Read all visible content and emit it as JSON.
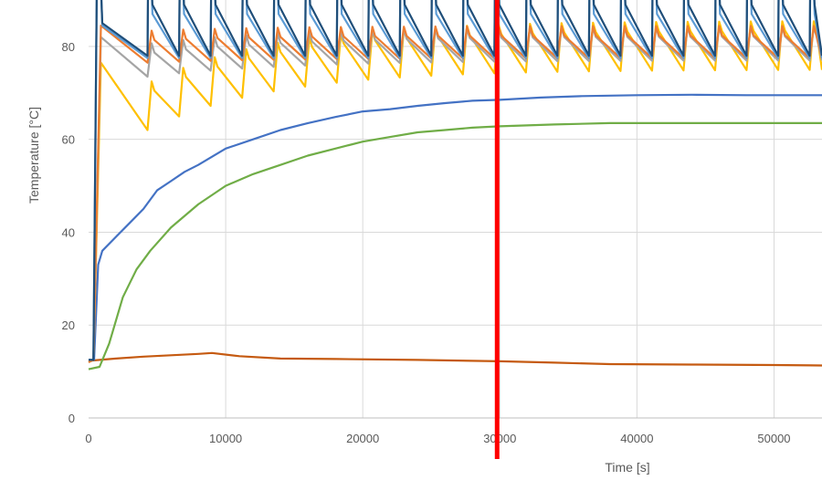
{
  "chart_data": {
    "type": "line",
    "xlabel": "Time [s]",
    "ylabel": "Temperature [°C]",
    "xlim": [
      0,
      53500
    ],
    "ylim": [
      0,
      90
    ],
    "x_ticks": [
      0,
      10000,
      20000,
      30000,
      40000,
      50000
    ],
    "y_ticks": [
      0,
      20,
      40,
      60,
      80
    ],
    "grid": true,
    "legend": "none",
    "vertical_marker": {
      "x": 29800,
      "color": "#ff0000"
    },
    "cycle": {
      "heat_on": 300,
      "period": 2300,
      "first_cycle_end": 4300
    },
    "series": [
      {
        "color": "#1f4e79",
        "kind": "heater",
        "base": 85.0,
        "floor_start": 78.0,
        "floor_end": 78.0,
        "tau": 8000,
        "peak": 92
      },
      {
        "color": "#5b9bd5",
        "kind": "heater",
        "base": 84.5,
        "floor_start": 77.5,
        "floor_end": 77.5,
        "tau": 8000,
        "peak": 90
      },
      {
        "color": "#ed7d31",
        "kind": "sawtooth",
        "base": 84.5,
        "floor_start": 76.5,
        "floor_end": 77.5,
        "tau": 9000
      },
      {
        "color": "#a5a5a5",
        "kind": "sawtooth",
        "base": 82.0,
        "floor_start": 73.5,
        "floor_end": 77.0,
        "tau": 10000
      },
      {
        "color": "#ffc000",
        "kind": "sawtooth",
        "base": 76.5,
        "floor_start": 62.0,
        "floor_end": 75.0,
        "tau": 9000
      },
      {
        "color": "#4472c4",
        "kind": "smooth",
        "values": [
          [
            0,
            12.5
          ],
          [
            400,
            12.5
          ],
          [
            700,
            33
          ],
          [
            1000,
            36
          ],
          [
            2000,
            39
          ],
          [
            3000,
            42
          ],
          [
            4000,
            45
          ],
          [
            5000,
            49
          ],
          [
            6000,
            51
          ],
          [
            7000,
            53
          ],
          [
            8000,
            54.5
          ],
          [
            10000,
            58
          ],
          [
            12000,
            60
          ],
          [
            14000,
            62
          ],
          [
            16000,
            63.5
          ],
          [
            18000,
            64.8
          ],
          [
            20000,
            66
          ],
          [
            22000,
            66.5
          ],
          [
            24000,
            67.2
          ],
          [
            26000,
            67.8
          ],
          [
            28000,
            68.3
          ],
          [
            30000,
            68.5
          ],
          [
            33000,
            69
          ],
          [
            36000,
            69.3
          ],
          [
            40000,
            69.5
          ],
          [
            44000,
            69.6
          ],
          [
            48000,
            69.5
          ],
          [
            53500,
            69.5
          ]
        ]
      },
      {
        "color": "#70ad47",
        "kind": "smooth",
        "values": [
          [
            0,
            10.5
          ],
          [
            800,
            11
          ],
          [
            1500,
            16
          ],
          [
            2500,
            26
          ],
          [
            3500,
            32
          ],
          [
            4500,
            36
          ],
          [
            6000,
            41
          ],
          [
            8000,
            46
          ],
          [
            10000,
            50
          ],
          [
            12000,
            52.5
          ],
          [
            14000,
            54.5
          ],
          [
            16000,
            56.5
          ],
          [
            18000,
            58
          ],
          [
            20000,
            59.5
          ],
          [
            22000,
            60.5
          ],
          [
            24000,
            61.5
          ],
          [
            26000,
            62
          ],
          [
            28000,
            62.5
          ],
          [
            30000,
            62.8
          ],
          [
            34000,
            63.2
          ],
          [
            38000,
            63.5
          ],
          [
            44000,
            63.5
          ],
          [
            50000,
            63.5
          ],
          [
            53500,
            63.5
          ]
        ]
      },
      {
        "color": "#c55a11",
        "kind": "smooth",
        "values": [
          [
            0,
            12.3
          ],
          [
            2000,
            12.8
          ],
          [
            4000,
            13.2
          ],
          [
            6000,
            13.5
          ],
          [
            8000,
            13.8
          ],
          [
            9000,
            14
          ],
          [
            11000,
            13.3
          ],
          [
            14000,
            12.8
          ],
          [
            18000,
            12.7
          ],
          [
            24000,
            12.5
          ],
          [
            30000,
            12.2
          ],
          [
            34000,
            11.9
          ],
          [
            38000,
            11.6
          ],
          [
            44000,
            11.5
          ],
          [
            50000,
            11.4
          ],
          [
            53500,
            11.3
          ]
        ]
      }
    ]
  }
}
